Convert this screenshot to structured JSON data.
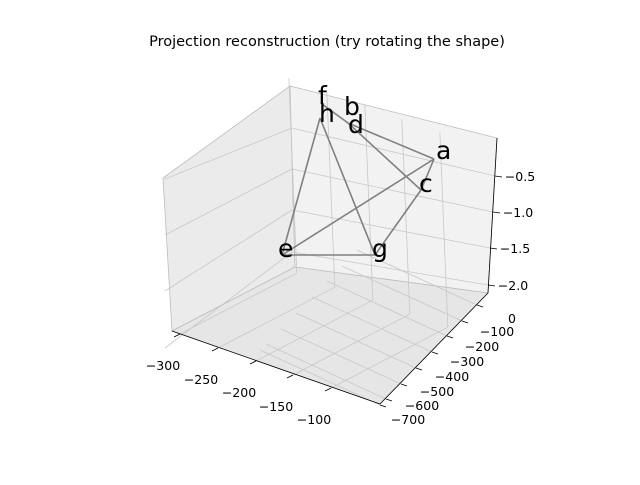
{
  "chart_data": {
    "type": "3d-wireframe",
    "title": "Projection reconstruction (try rotating the shape)",
    "x_ticks": [
      "−300",
      "−250",
      "−200",
      "−150",
      "−100"
    ],
    "y_ticks": [
      "0",
      "−100",
      "−200",
      "−300",
      "−400",
      "−500",
      "−600",
      "−700"
    ],
    "z_ticks": [
      "−0.5",
      "−1.0",
      "−1.5",
      "−2.0"
    ],
    "points": [
      {
        "label": "a"
      },
      {
        "label": "b"
      },
      {
        "label": "c"
      },
      {
        "label": "d"
      },
      {
        "label": "e"
      },
      {
        "label": "f"
      },
      {
        "label": "g"
      },
      {
        "label": "h"
      }
    ],
    "edges": [
      [
        "e",
        "a"
      ],
      [
        "e",
        "g"
      ],
      [
        "e",
        "h"
      ],
      [
        "a",
        "c"
      ],
      [
        "a",
        "d"
      ],
      [
        "c",
        "g"
      ],
      [
        "c",
        "d"
      ],
      [
        "h",
        "g"
      ],
      [
        "f",
        "d"
      ]
    ],
    "line_color": "#808080",
    "pane_color": "#f2f2f2",
    "grid": true
  }
}
